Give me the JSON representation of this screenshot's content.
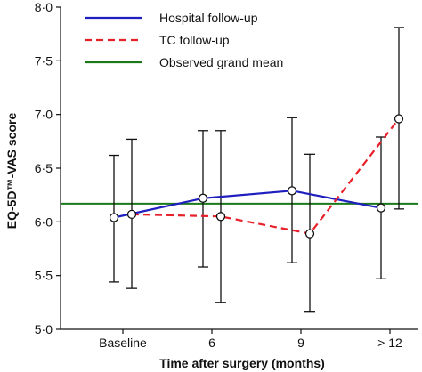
{
  "chart_data": {
    "type": "line",
    "categories": [
      "Baseline",
      "6",
      "9",
      "> 12"
    ],
    "xlabel": "Time after surgery (months)",
    "ylabel": "EQ-5D™-VAS score",
    "ylim": [
      5.0,
      8.0
    ],
    "yticks": [
      "5·0",
      "5·5",
      "6·0",
      "6·5",
      "7·0",
      "7·5",
      "8·0"
    ],
    "ytick_values": [
      5.0,
      5.5,
      6.0,
      6.5,
      7.0,
      7.5,
      8.0
    ],
    "legend_position": "top-left",
    "grid": false,
    "series": [
      {
        "name": "Hospital follow-up",
        "color": "#1f1fbf",
        "dash": "solid",
        "values": [
          6.04,
          6.22,
          6.29,
          6.13
        ],
        "ci_low": [
          5.44,
          5.58,
          5.62,
          5.47
        ],
        "ci_high": [
          6.62,
          6.85,
          6.97,
          6.79
        ]
      },
      {
        "name": "TC follow-up",
        "color": "#e8202a",
        "dash": "dashed",
        "values": [
          6.07,
          6.05,
          5.89,
          6.96
        ],
        "ci_low": [
          5.38,
          5.25,
          5.16,
          6.12
        ],
        "ci_high": [
          6.77,
          6.85,
          6.63,
          7.81
        ]
      }
    ],
    "reference_line": {
      "name": "Observed grand mean",
      "color": "#1a7a1a",
      "value": 6.17
    }
  }
}
